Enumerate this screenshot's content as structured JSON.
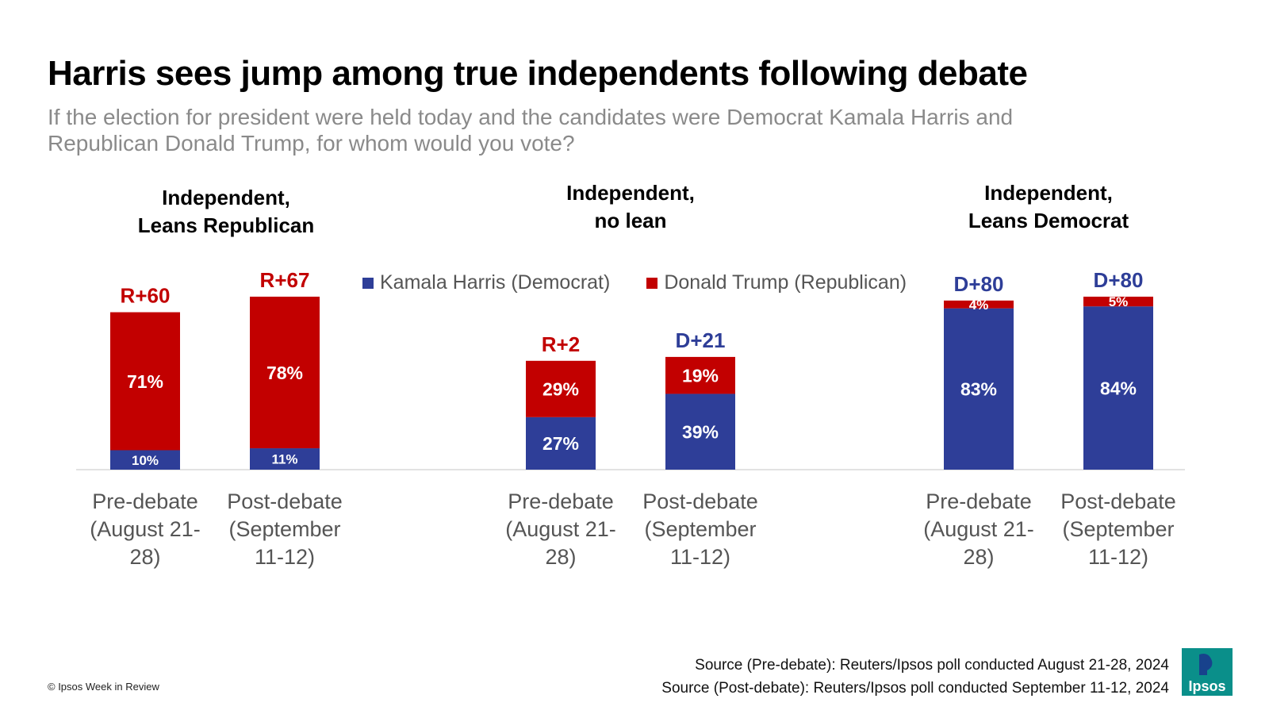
{
  "title": "Harris sees jump among true independents following debate",
  "subtitle": "If the election for president were held today and the candidates were Democrat Kamala Harris and Republican Donald Trump, for whom would you vote?",
  "legend": [
    {
      "label": "Kamala Harris (Democrat)",
      "color": "#2e3e98"
    },
    {
      "label": "Donald Trump (Republican)",
      "color": "#c20000"
    }
  ],
  "chart_data": {
    "type": "bar",
    "stacked": true,
    "ylim": [
      0,
      100
    ],
    "grid": false,
    "legend_position": "top-center",
    "categories": [
      "Pre-debate (August 21-28)",
      "Post-debate (September 11-12)"
    ],
    "groups": [
      {
        "title": "Independent, Leans Republican",
        "title_lines": [
          "Independent,",
          "Leans Republican"
        ],
        "bars": [
          {
            "category": "Pre-debate (August 21-28)",
            "label_lines": [
              "Pre-debate",
              "(August 21-",
              "28)"
            ],
            "harris": 10,
            "trump": 71,
            "harris_label": "10%",
            "trump_label": "71%",
            "margin": "R+60",
            "margin_party": "R"
          },
          {
            "category": "Post-debate (September 11-12)",
            "label_lines": [
              "Post-debate",
              "(September",
              "11-12)"
            ],
            "harris": 11,
            "trump": 78,
            "harris_label": "11%",
            "trump_label": "78%",
            "margin": "R+67",
            "margin_party": "R"
          }
        ]
      },
      {
        "title": "Independent, no lean",
        "title_lines": [
          "Independent,",
          "no lean"
        ],
        "bars": [
          {
            "category": "Pre-debate (August 21-28)",
            "label_lines": [
              "Pre-debate",
              "(August 21-",
              "28)"
            ],
            "harris": 27,
            "trump": 29,
            "harris_label": "27%",
            "trump_label": "29%",
            "margin": "R+2",
            "margin_party": "R"
          },
          {
            "category": "Post-debate (September 11-12)",
            "label_lines": [
              "Post-debate",
              "(September",
              "11-12)"
            ],
            "harris": 39,
            "trump": 19,
            "harris_label": "39%",
            "trump_label": "19%",
            "margin": "D+21",
            "margin_party": "D"
          }
        ]
      },
      {
        "title": "Independent, Leans Democrat",
        "title_lines": [
          "Independent,",
          "Leans Democrat"
        ],
        "bars": [
          {
            "category": "Pre-debate (August 21-28)",
            "label_lines": [
              "Pre-debate",
              "(August 21-",
              "28)"
            ],
            "harris": 83,
            "trump": 4,
            "harris_label": "83%",
            "trump_label": "4%",
            "margin": "D+80",
            "margin_party": "D"
          },
          {
            "category": "Post-debate (September 11-12)",
            "label_lines": [
              "Post-debate",
              "(September",
              "11-12)"
            ],
            "harris": 84,
            "trump": 5,
            "harris_label": "84%",
            "trump_label": "5%",
            "margin": "D+80",
            "margin_party": "D"
          }
        ]
      }
    ]
  },
  "sources": [
    "Source (Pre-debate): Reuters/Ipsos poll conducted August 21-28, 2024",
    "Source (Post-debate): Reuters/Ipsos poll conducted September 11-12, 2024"
  ],
  "footer": "© Ipsos Week in Review",
  "logo_text": "Ipsos",
  "colors": {
    "harris": "#2e3e98",
    "trump": "#c20000",
    "axis": "#d9d9d9",
    "logo": "#0a8f8a"
  }
}
